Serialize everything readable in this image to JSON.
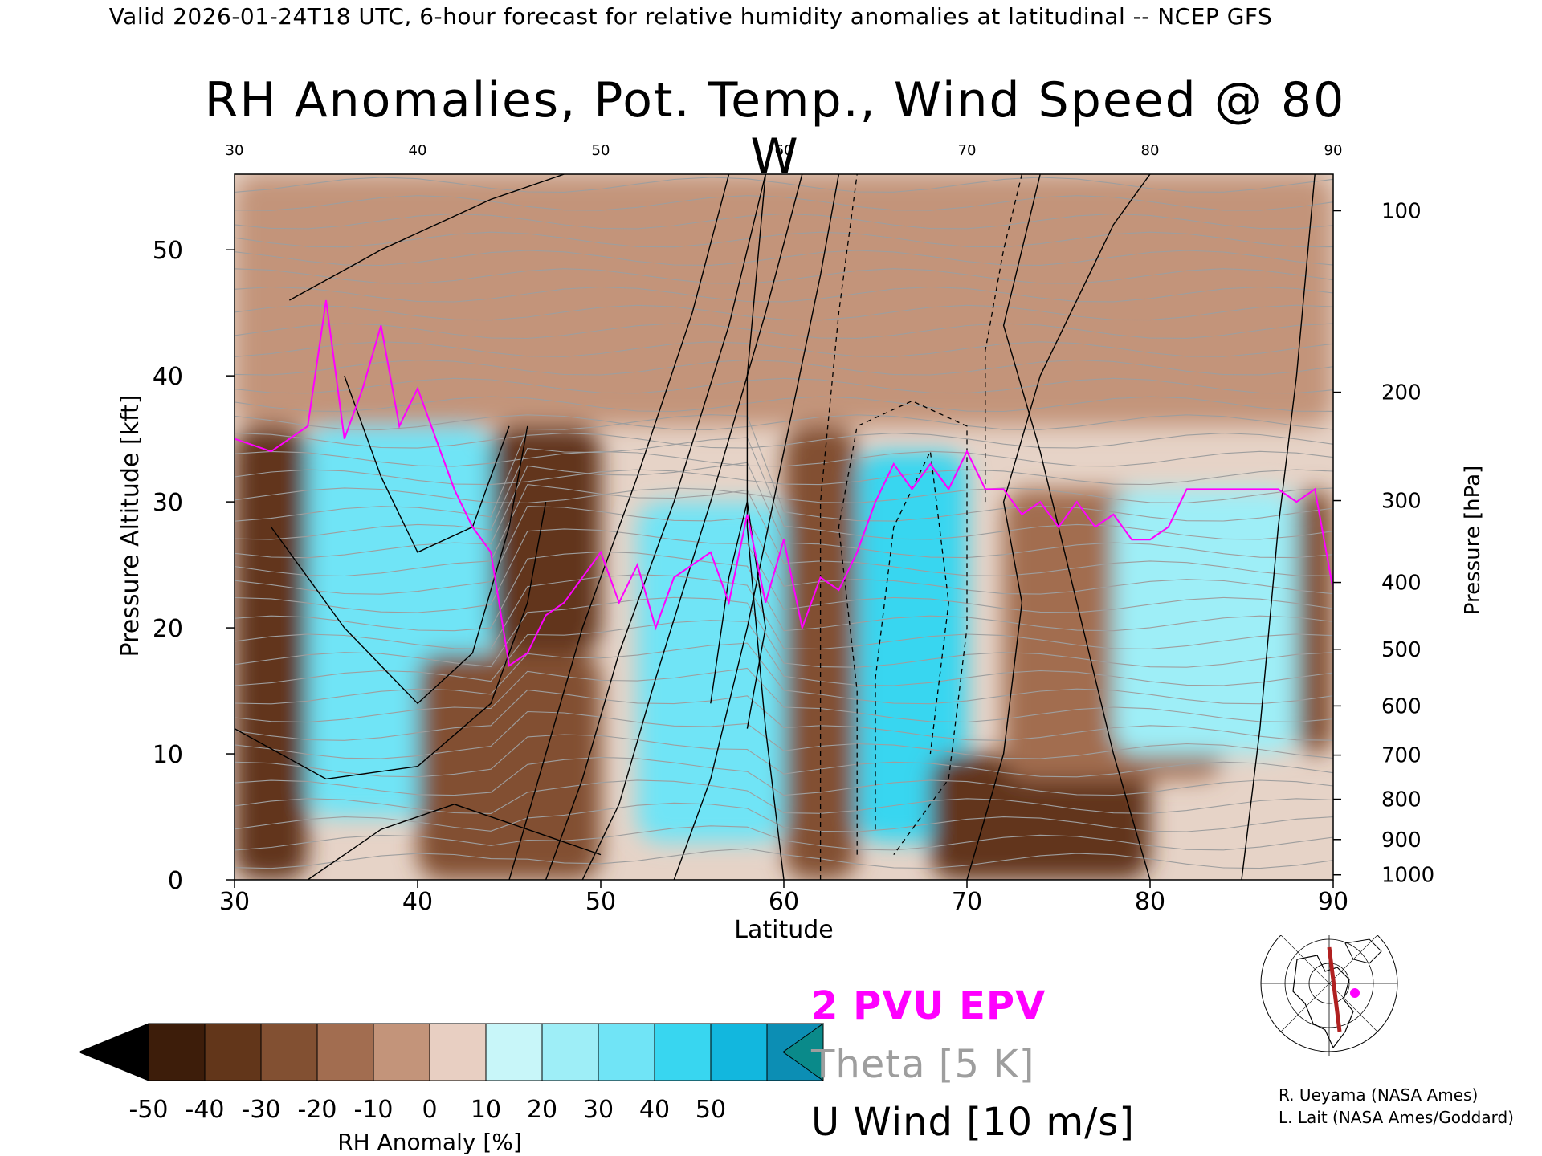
{
  "header": {
    "valid_line": "Valid 2026-01-24T18 UTC, 6-hour forecast for relative humidity anomalies at latitudinal -- NCEP GFS",
    "title": "RH Anomalies, Pot. Temp., Wind Speed @ 80 W"
  },
  "legend": {
    "epv_label": "2 PVU EPV",
    "theta_label": "Theta [5 K]",
    "uwind_label": "U Wind [10 m/s]",
    "epv_color": "#ff00ff",
    "theta_color": "#9e9e9e",
    "uwind_color": "#000000"
  },
  "credits": {
    "line1": "R. Ueyama (NASA Ames)",
    "line2": "L. Lait (NASA Ames/Goddard)"
  },
  "map_inset": {
    "icon": "globe-map-icon",
    "marker_color": "#ff00ff",
    "track_color": "#b02020"
  },
  "colorbar": {
    "label": "RH Anomaly [%]",
    "tick_labels": [
      "-50",
      "-40",
      "-30",
      "-20",
      "-10",
      "0",
      "10",
      "20",
      "30",
      "40",
      "50"
    ],
    "colors": [
      "#000000",
      "#3d1d0a",
      "#62361a",
      "#825032",
      "#a26d50",
      "#c3947a",
      "#e8cfc2",
      "#c8f6f9",
      "#9eeef7",
      "#70e4f6",
      "#38d6f0",
      "#12b7de",
      "#0c8eb4",
      "#0a8a8a"
    ]
  },
  "chart_data": {
    "type": "heatmap",
    "title": "RH Anomalies, Pot. Temp., Wind Speed @ 80 W",
    "xlabel": "Latitude",
    "ylabel_left": "Pressure Altitude [kft]",
    "ylabel_right": "Pressure [hPa]",
    "xlim": [
      30,
      90
    ],
    "ylim": [
      0,
      56
    ],
    "x_ticks": [
      "30",
      "40",
      "50",
      "60",
      "70",
      "80",
      "90"
    ],
    "y_ticks_left": [
      "0",
      "10",
      "20",
      "30",
      "40",
      "50"
    ],
    "y_ticks_right": [
      {
        "label": "100",
        "kft": 53.1
      },
      {
        "label": "200",
        "kft": 38.7
      },
      {
        "label": "300",
        "kft": 30.1
      },
      {
        "label": "400",
        "kft": 23.6
      },
      {
        "label": "500",
        "kft": 18.3
      },
      {
        "label": "600",
        "kft": 13.8
      },
      {
        "label": "700",
        "kft": 9.9
      },
      {
        "label": "800",
        "kft": 6.4
      },
      {
        "label": "900",
        "kft": 3.2
      },
      {
        "label": "1000",
        "kft": 0.4
      }
    ],
    "rh_anomaly_regions": [
      {
        "lat": [
          30,
          34
        ],
        "kft": [
          0,
          36
        ],
        "value": -35
      },
      {
        "lat": [
          34,
          44
        ],
        "kft": [
          5,
          36
        ],
        "value": 30
      },
      {
        "lat": [
          44,
          50
        ],
        "kft": [
          18,
          36
        ],
        "value": -40
      },
      {
        "lat": [
          40,
          50
        ],
        "kft": [
          0,
          18
        ],
        "value": -25
      },
      {
        "lat": [
          52,
          60
        ],
        "kft": [
          3,
          30
        ],
        "value": 35
      },
      {
        "lat": [
          60,
          64
        ],
        "kft": [
          0,
          36
        ],
        "value": -25
      },
      {
        "lat": [
          64,
          70
        ],
        "kft": [
          3,
          34
        ],
        "value": 40
      },
      {
        "lat": [
          68,
          80
        ],
        "kft": [
          0,
          10
        ],
        "value": -40
      },
      {
        "lat": [
          72,
          84
        ],
        "kft": [
          8,
          31
        ],
        "value": -20
      },
      {
        "lat": [
          78,
          88
        ],
        "kft": [
          10,
          31
        ],
        "value": 20
      },
      {
        "lat": [
          88,
          90
        ],
        "kft": [
          10,
          31
        ],
        "value": -30
      },
      {
        "lat": [
          30,
          90
        ],
        "kft": [
          36,
          56
        ],
        "value": -10
      }
    ],
    "epv_2pvu": {
      "x": [
        30,
        32,
        34,
        35,
        36,
        37,
        38,
        39,
        40,
        41,
        42,
        43,
        44,
        45,
        46,
        47,
        48,
        50,
        51,
        52,
        53,
        54,
        56,
        57,
        58,
        59,
        60,
        61,
        62,
        63,
        64,
        65,
        66,
        67,
        68,
        69,
        70,
        71,
        72,
        73,
        74,
        75,
        76,
        77,
        78,
        79,
        80,
        81,
        82,
        83,
        84,
        85,
        86,
        87,
        88,
        89,
        90
      ],
      "y": [
        35,
        34,
        36,
        46,
        35,
        39,
        44,
        36,
        39,
        35,
        31,
        28,
        26,
        17,
        18,
        21,
        22,
        26,
        22,
        25,
        20,
        24,
        26,
        22,
        29,
        22,
        27,
        20,
        24,
        23,
        26,
        30,
        33,
        31,
        33,
        31,
        34,
        31,
        31,
        29,
        30,
        28,
        30,
        28,
        29,
        27,
        27,
        28,
        31,
        31,
        31,
        31,
        31,
        31,
        30,
        31,
        23
      ]
    },
    "theta_contours_K": [
      "280",
      "290",
      "300",
      "310",
      "320",
      "330",
      "340",
      "350",
      "360",
      "370",
      "380",
      "390",
      "400",
      "410"
    ],
    "uwind_contours_ms": [
      "-10",
      "0",
      "10",
      "20",
      "30",
      "40",
      "50",
      "60",
      "70"
    ]
  }
}
